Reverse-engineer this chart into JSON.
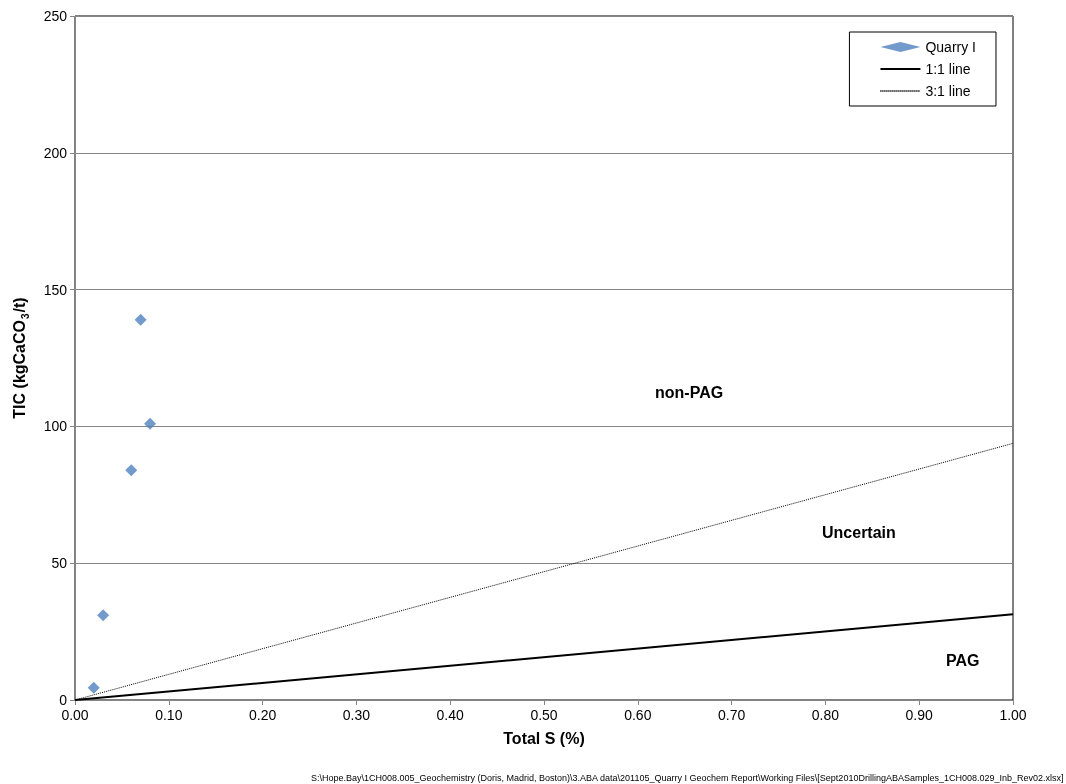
{
  "chart_data": {
    "type": "scatter",
    "xlabel": "Total S (%)",
    "ylabel": "TIC (kgCaCO$_{3}$/t)",
    "series": [
      {
        "name": "Quarry I",
        "type": "scatter",
        "color": "#4f81bd",
        "marker": "diamond",
        "x": [
          0.02,
          0.03,
          0.06,
          0.07,
          0.08
        ],
        "values": [
          4.5,
          31,
          84,
          139,
          101
        ]
      },
      {
        "name": "1:1 line",
        "type": "line",
        "color": "#000000",
        "marker": "none",
        "line_style": "solid",
        "x": [
          0,
          1
        ],
        "values": [
          0,
          31.3
        ]
      },
      {
        "name": "3:1 line",
        "type": "line",
        "color": "#000000",
        "marker": "none",
        "line_style": "dotted",
        "x": [
          0,
          1
        ],
        "values": [
          0,
          93.8
        ]
      }
    ],
    "xlim": [
      0,
      1
    ],
    "ylim": [
      0,
      250
    ],
    "xticks": [
      {
        "value": 0,
        "label": "0.00"
      },
      {
        "value": 0.1,
        "label": "0.10"
      },
      {
        "value": 0.2,
        "label": "0.20"
      },
      {
        "value": 0.3,
        "label": "0.30"
      },
      {
        "value": 0.4,
        "label": "0.40"
      },
      {
        "value": 0.5,
        "label": "0.50"
      },
      {
        "value": 0.6,
        "label": "0.60"
      },
      {
        "value": 0.7,
        "label": "0.70"
      },
      {
        "value": 0.8,
        "label": "0.80"
      },
      {
        "value": 0.9,
        "label": "0.90"
      },
      {
        "value": 1,
        "label": "1.00"
      }
    ],
    "yticks": [
      0,
      50,
      100,
      150,
      200,
      250
    ],
    "grid": "y",
    "legend": "top right",
    "annotations": [
      "non-PAG",
      "Uncertain",
      "PAG",
      "S:\\Hope.Bay\\1CH008.005_Geochemistry (Doris, Madrid, Boston)\\3.ABA data\\201105_Quarry I Geochem Report\\Working Files\\[Sept2010DrillingABASamples_1CH008.029_Inb_Rev02.xlsx]"
    ]
  }
}
